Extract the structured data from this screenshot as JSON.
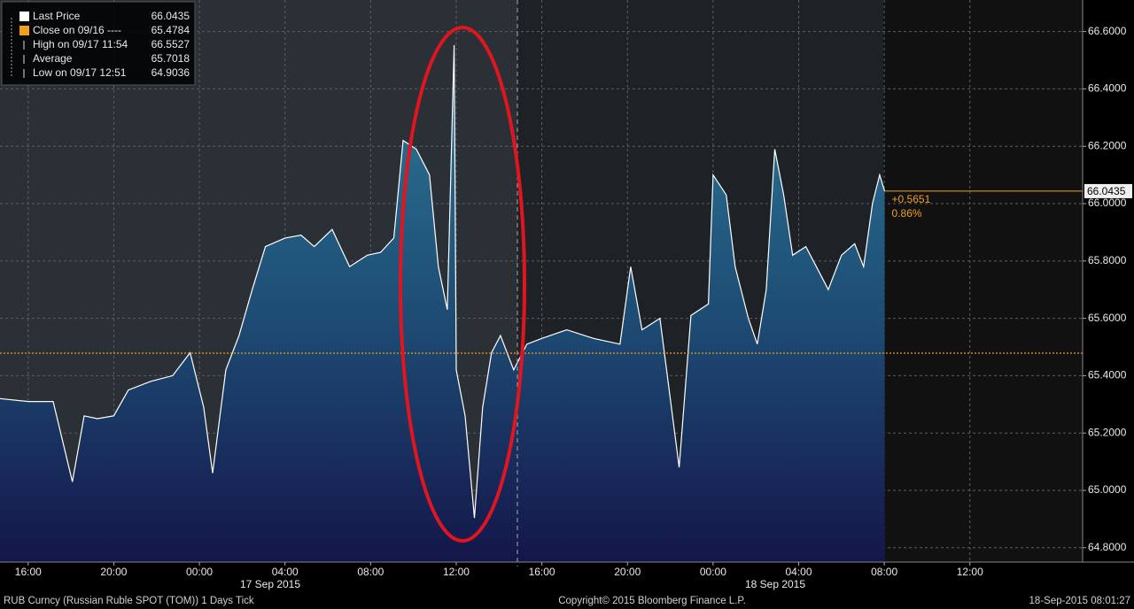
{
  "chart_data": {
    "type": "area",
    "x": [
      "2015-09-16 14:41",
      "2015-09-16 16:00",
      "2015-09-16 17:10",
      "2015-09-16 18:04",
      "2015-09-16 18:37",
      "2015-09-16 19:14",
      "2015-09-16 20:00",
      "2015-09-16 20:41",
      "2015-09-16 21:43",
      "2015-09-16 22:45",
      "2015-09-16 23:34",
      "2015-09-17 00:12",
      "2015-09-17 00:37",
      "2015-09-17 01:14",
      "2015-09-17 01:51",
      "2015-09-17 02:28",
      "2015-09-17 03:05",
      "2015-09-17 04:00",
      "2015-09-17 04:45",
      "2015-09-17 05:22",
      "2015-09-17 06:12",
      "2015-09-17 07:01",
      "2015-09-17 07:51",
      "2015-09-17 08:28",
      "2015-09-17 09:05",
      "2015-09-17 09:31",
      "2015-09-17 10:08",
      "2015-09-17 10:45",
      "2015-09-17 11:10",
      "2015-09-17 11:35",
      "2015-09-17 11:54",
      "2015-09-17 12:00",
      "2015-09-17 12:25",
      "2015-09-17 12:51",
      "2015-09-17 13:14",
      "2015-09-17 13:39",
      "2015-09-17 14:04",
      "2015-09-17 14:41",
      "2015-09-17 15:18",
      "2015-09-17 16:00",
      "2015-09-17 17:10",
      "2015-09-17 18:25",
      "2015-09-17 19:39",
      "2015-09-17 20:09",
      "2015-09-17 20:41",
      "2015-09-17 21:31",
      "2015-09-17 22:25",
      "2015-09-17 22:58",
      "2015-09-17 23:47",
      "2015-09-18 00:00",
      "2015-09-18 00:37",
      "2015-09-18 01:02",
      "2015-09-18 01:39",
      "2015-09-18 02:04",
      "2015-09-18 02:29",
      "2015-09-18 02:53",
      "2015-09-18 03:18",
      "2015-09-18 03:43",
      "2015-09-18 04:20",
      "2015-09-18 04:58",
      "2015-09-18 05:23",
      "2015-09-18 06:00",
      "2015-09-18 06:37",
      "2015-09-18 07:02",
      "2015-09-18 07:27",
      "2015-09-18 07:47",
      "2015-09-18 08:01"
    ],
    "values": [
      65.32,
      65.31,
      65.31,
      65.03,
      65.26,
      65.25,
      65.26,
      65.35,
      65.38,
      65.4,
      65.48,
      65.29,
      65.06,
      65.42,
      65.54,
      65.7,
      65.85,
      65.88,
      65.89,
      65.85,
      65.91,
      65.78,
      65.82,
      65.83,
      65.88,
      66.22,
      66.19,
      66.1,
      65.78,
      65.63,
      66.5527,
      65.42,
      65.26,
      64.9036,
      65.29,
      65.48,
      65.54,
      65.42,
      65.51,
      65.53,
      65.56,
      65.53,
      65.51,
      65.78,
      65.56,
      65.6,
      65.08,
      65.61,
      65.65,
      66.1,
      66.03,
      65.78,
      65.6,
      65.51,
      65.7,
      66.19,
      66.03,
      65.82,
      65.85,
      65.76,
      65.7,
      65.82,
      65.86,
      65.78,
      66.0,
      66.1,
      66.0435
    ],
    "xlim": [
      "2015-09-16 14:41",
      "2015-09-18 17:16"
    ],
    "xticks": [
      {
        "value": "2015-09-16 16:00",
        "label": "16:00"
      },
      {
        "value": "2015-09-16 20:00",
        "label": "20:00"
      },
      {
        "value": "2015-09-17 00:00",
        "label": "00:00"
      },
      {
        "value": "2015-09-17 04:00",
        "label": "04:00"
      },
      {
        "value": "2015-09-17 08:00",
        "label": "08:00"
      },
      {
        "value": "2015-09-17 12:00",
        "label": "12:00"
      },
      {
        "value": "2015-09-17 16:00",
        "label": "16:00"
      },
      {
        "value": "2015-09-17 20:00",
        "label": "20:00"
      },
      {
        "value": "2015-09-18 00:00",
        "label": "00:00"
      },
      {
        "value": "2015-09-18 04:00",
        "label": "04:00"
      },
      {
        "value": "2015-09-18 08:00",
        "label": "08:00"
      },
      {
        "value": "2015-09-18 12:00",
        "label": "12:00"
      }
    ],
    "date_labels": [
      "17 Sep 2015",
      "18 Sep 2015"
    ],
    "ylim": [
      64.75,
      66.71
    ],
    "yticks": [
      {
        "value": 64.8,
        "label": "64.8000"
      },
      {
        "value": 65.0,
        "label": "65.0000"
      },
      {
        "value": 65.2,
        "label": "65.2000"
      },
      {
        "value": 65.4,
        "label": "65.4000"
      },
      {
        "value": 65.6,
        "label": "65.6000"
      },
      {
        "value": 65.8,
        "label": "65.8000"
      },
      {
        "value": 66.0,
        "label": "66.0000"
      },
      {
        "value": 66.2,
        "label": "66.2000"
      },
      {
        "value": 66.4,
        "label": "66.4000"
      },
      {
        "value": 66.6,
        "label": "66.6000"
      }
    ],
    "grid": true,
    "legend": [
      {
        "label": "Last Price",
        "value": 66.0435
      },
      {
        "label": "Close on 09/16 ----",
        "value": 65.4784
      },
      {
        "label": "High on 09/17 11:54",
        "value": 66.5527
      },
      {
        "label": "Average",
        "value": 65.7018
      },
      {
        "label": "Low on 09/17 12:51",
        "value": 64.9036
      }
    ],
    "annotations": [
      "+0.5651",
      "0.86%"
    ],
    "footer": [
      "RUB Curncy (Russian Ruble SPOT (TOM)) 1 Days  Tick",
      "Copyright© 2015 Bloomberg Finance L.P.",
      "18-Sep-2015 08:01:27"
    ],
    "close_color": "#f0a020",
    "line_color": "#ffffff"
  }
}
